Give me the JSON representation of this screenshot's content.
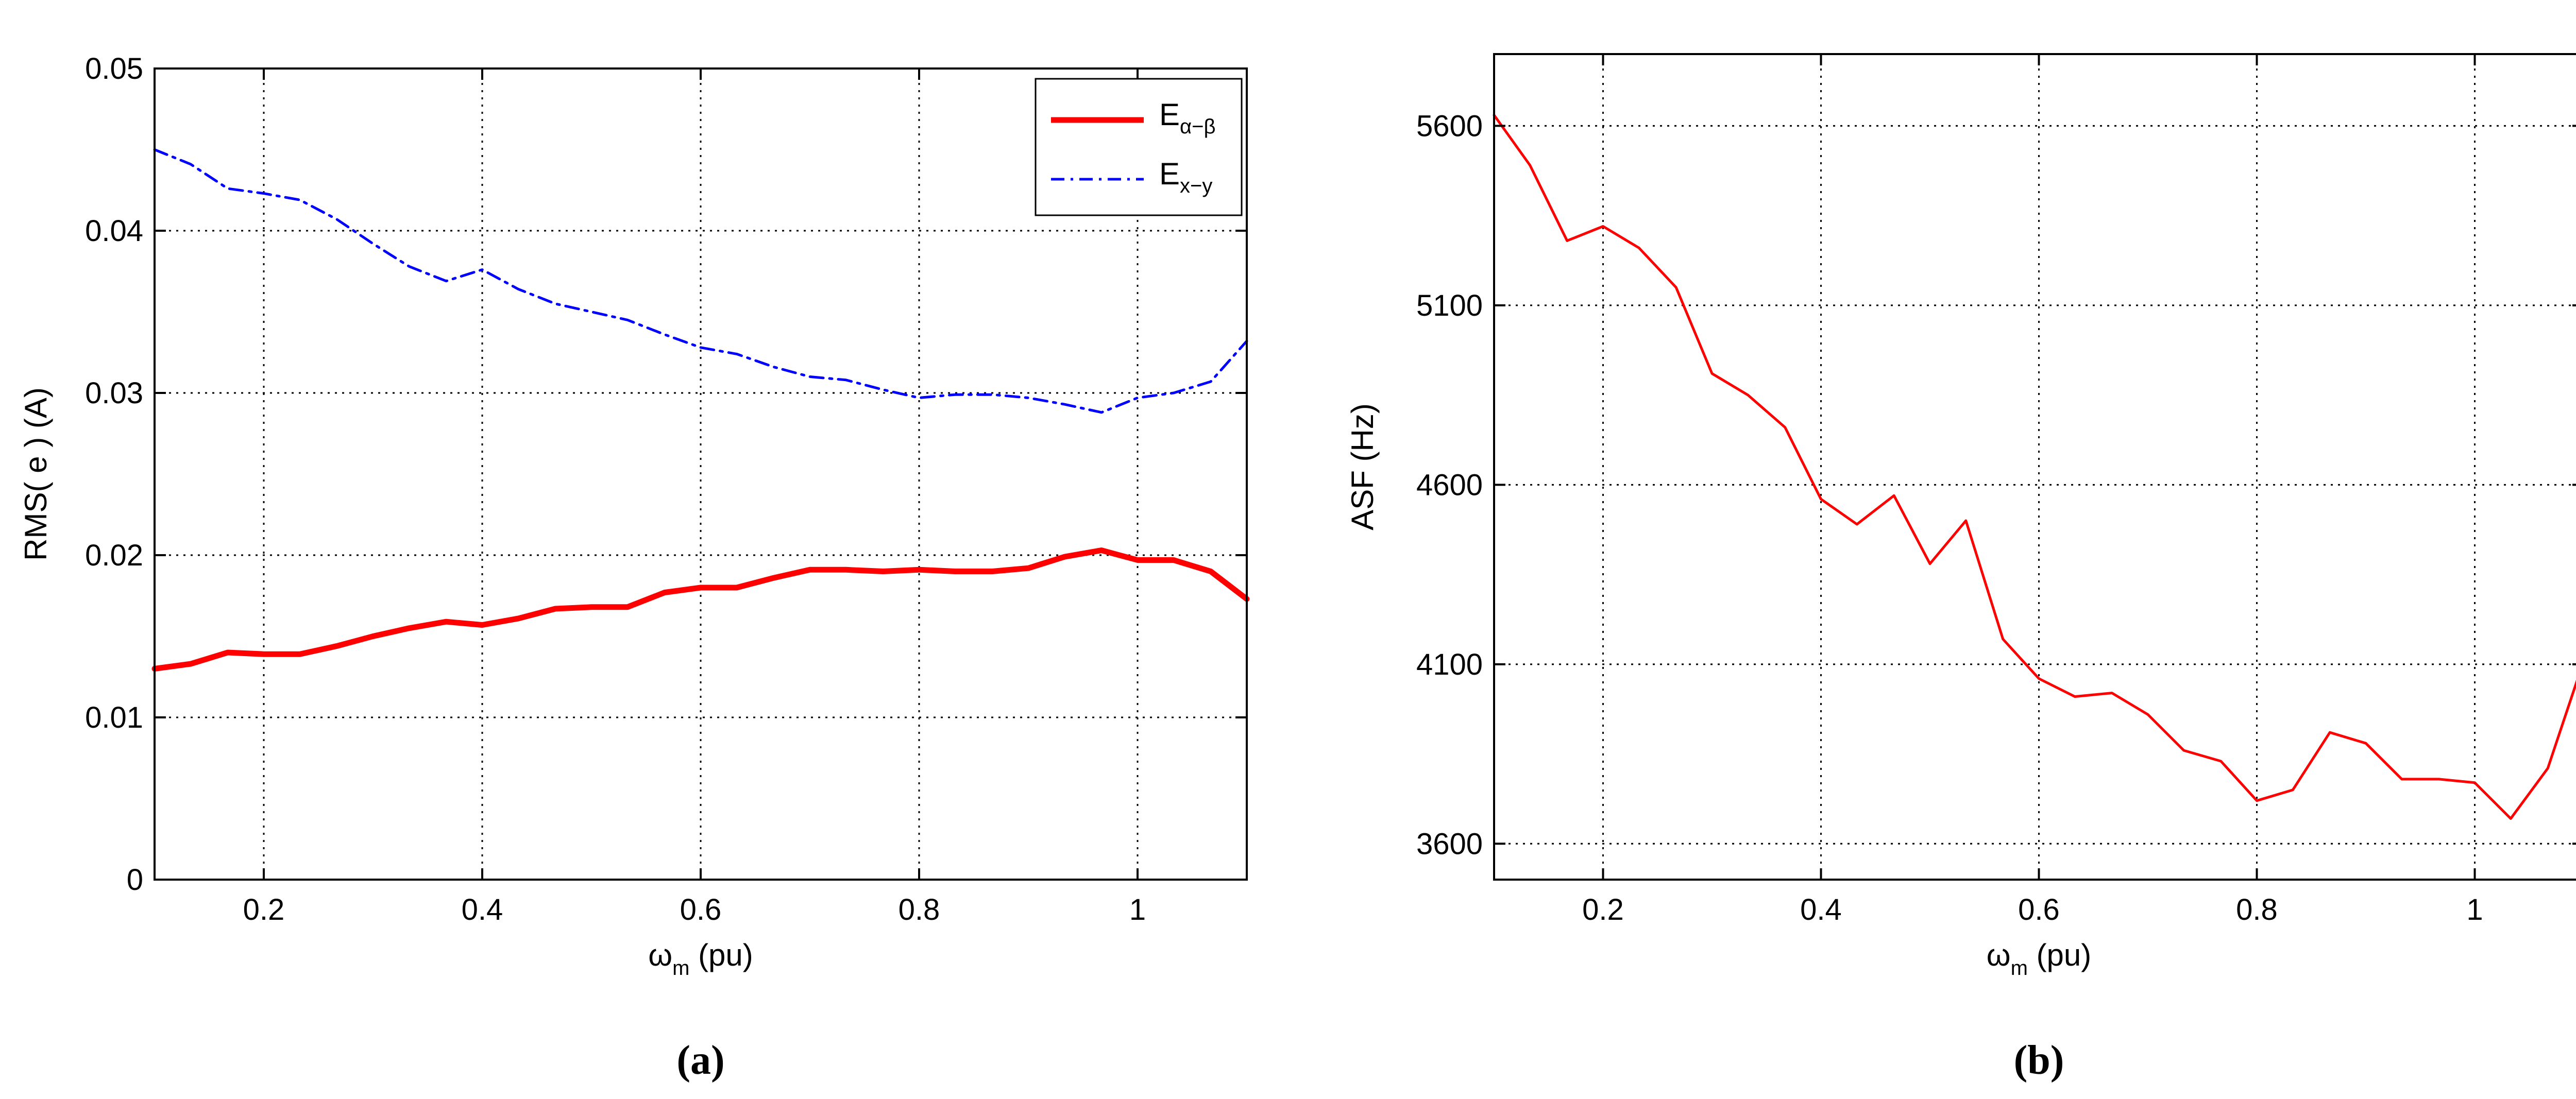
{
  "chart_data": [
    {
      "type": "line",
      "panel_label": "(a)",
      "xlabel": {
        "main": "ω",
        "sub": "m",
        "rest": " (pu)"
      },
      "ylabel": "RMS( e ) (A)",
      "xlim": [
        0.1,
        1.1
      ],
      "ylim": [
        0,
        0.05
      ],
      "xticks": [
        0.2,
        0.4,
        0.6,
        0.8,
        1.0
      ],
      "xtick_labels": [
        "0.2",
        "0.4",
        "0.6",
        "0.8",
        "1"
      ],
      "yticks": [
        0,
        0.01,
        0.02,
        0.03,
        0.04,
        0.05
      ],
      "ytick_labels": [
        "0",
        "0.01",
        "0.02",
        "0.03",
        "0.04",
        "0.05"
      ],
      "grid": true,
      "legend_position": "top-right",
      "series": [
        {
          "name": {
            "main": "E",
            "sub": "α−β"
          },
          "color": "#ff0000",
          "style": "solid-thick",
          "x": [
            0.1,
            0.133,
            0.167,
            0.2,
            0.233,
            0.267,
            0.3,
            0.333,
            0.367,
            0.4,
            0.433,
            0.467,
            0.5,
            0.533,
            0.567,
            0.6,
            0.633,
            0.667,
            0.7,
            0.733,
            0.767,
            0.8,
            0.833,
            0.867,
            0.9,
            0.933,
            0.967,
            1.0,
            1.033,
            1.067,
            1.1
          ],
          "y": [
            0.013,
            0.0133,
            0.014,
            0.0139,
            0.0139,
            0.0144,
            0.015,
            0.0155,
            0.0159,
            0.0157,
            0.0161,
            0.0167,
            0.0168,
            0.0168,
            0.0177,
            0.018,
            0.018,
            0.0186,
            0.0191,
            0.0191,
            0.019,
            0.0191,
            0.019,
            0.019,
            0.0192,
            0.0199,
            0.0203,
            0.0197,
            0.0197,
            0.019,
            0.0173
          ]
        },
        {
          "name": {
            "main": "E",
            "sub": "x−y"
          },
          "color": "#0000ff",
          "style": "dash-dot",
          "x": [
            0.1,
            0.133,
            0.167,
            0.2,
            0.233,
            0.267,
            0.3,
            0.333,
            0.367,
            0.4,
            0.433,
            0.467,
            0.5,
            0.533,
            0.567,
            0.6,
            0.633,
            0.667,
            0.7,
            0.733,
            0.767,
            0.8,
            0.833,
            0.867,
            0.9,
            0.933,
            0.967,
            1.0,
            1.033,
            1.067,
            1.1
          ],
          "y": [
            0.045,
            0.0441,
            0.0426,
            0.0423,
            0.0419,
            0.0407,
            0.0392,
            0.0378,
            0.0369,
            0.0376,
            0.0364,
            0.0355,
            0.035,
            0.0345,
            0.0336,
            0.0328,
            0.0324,
            0.0316,
            0.031,
            0.0308,
            0.0302,
            0.0297,
            0.0299,
            0.0299,
            0.0297,
            0.0293,
            0.0288,
            0.0297,
            0.03,
            0.0307,
            0.0332
          ]
        }
      ]
    },
    {
      "type": "line",
      "panel_label": "(b)",
      "xlabel": {
        "main": "ω",
        "sub": "m",
        "rest": " (pu)"
      },
      "ylabel": "ASF (Hz)",
      "xlim": [
        0.1,
        1.1
      ],
      "ylim": [
        3500,
        5800
      ],
      "xticks": [
        0.2,
        0.4,
        0.6,
        0.8,
        1.0
      ],
      "xtick_labels": [
        "0.2",
        "0.4",
        "0.6",
        "0.8",
        "1"
      ],
      "yticks": [
        3600,
        4100,
        4600,
        5100,
        5600
      ],
      "ytick_labels": [
        "3600",
        "4100",
        "4600",
        "5100",
        "5600"
      ],
      "grid": true,
      "series": [
        {
          "color": "#ff0000",
          "style": "solid",
          "x": [
            0.1,
            0.133,
            0.167,
            0.2,
            0.233,
            0.267,
            0.3,
            0.333,
            0.367,
            0.4,
            0.433,
            0.467,
            0.5,
            0.533,
            0.567,
            0.6,
            0.633,
            0.667,
            0.7,
            0.733,
            0.767,
            0.8,
            0.833,
            0.867,
            0.9,
            0.933,
            0.967,
            1.0,
            1.033,
            1.067,
            1.1
          ],
          "y": [
            5630,
            5490,
            5280,
            5320,
            5260,
            5150,
            4910,
            4850,
            4760,
            4560,
            4490,
            4570,
            4380,
            4500,
            4170,
            4060,
            4010,
            4020,
            3960,
            3860,
            3830,
            3720,
            3750,
            3910,
            3880,
            3780,
            3780,
            3770,
            3670,
            3810,
            4110
          ]
        }
      ]
    }
  ]
}
